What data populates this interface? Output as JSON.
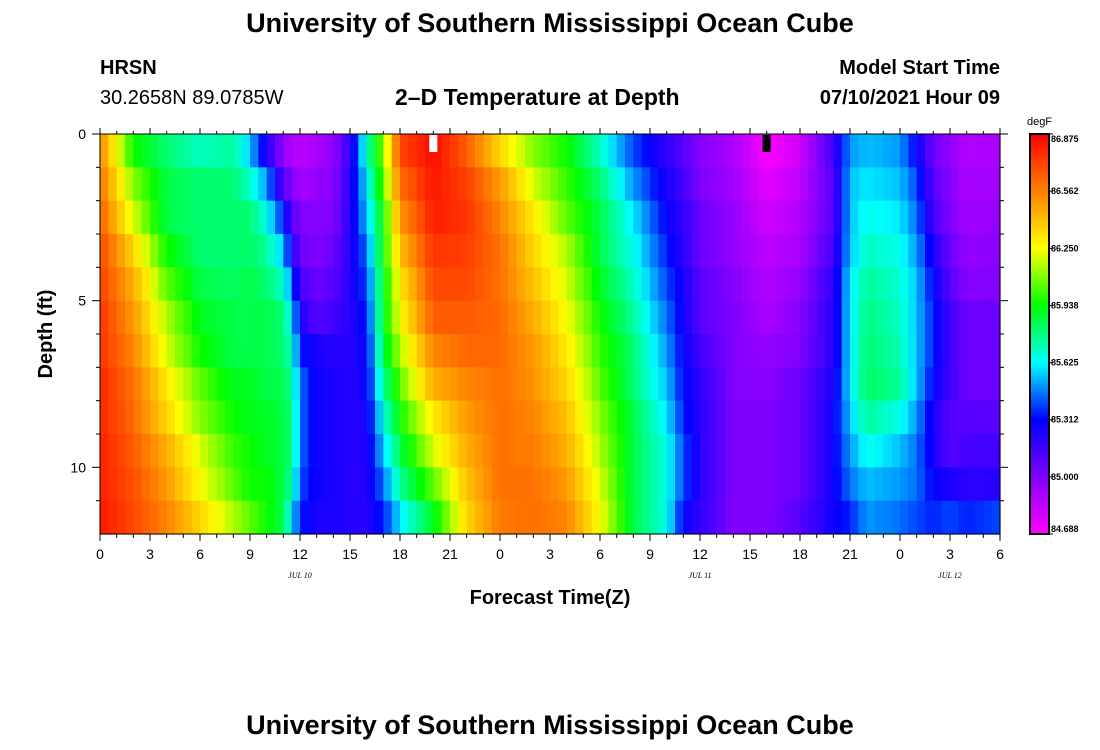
{
  "header": {
    "top_title": "University of Southern Mississippi Ocean Cube",
    "bottom_title": "University of Southern Mississippi Ocean Cube",
    "station_code": "HRSN",
    "station_coords": "30.2658N  89.0785W",
    "chart_title": "2–D Temperature at Depth",
    "model_start_label": "Model Start Time",
    "model_start_value": "07/10/2021 Hour 09"
  },
  "chart_data": {
    "type": "heatmap",
    "title": "2–D Temperature at Depth",
    "xlabel": "Forecast Time(Z)",
    "ylabel": "Depth (ft)",
    "x_hours_range": [
      0,
      54
    ],
    "xlim": [
      0,
      54
    ],
    "ylim": [
      0,
      12
    ],
    "x_tick_labels": [
      "0",
      "3",
      "6",
      "9",
      "12",
      "15",
      "18",
      "21",
      "0",
      "3",
      "6",
      "9",
      "12",
      "15",
      "18",
      "21",
      "0",
      "3",
      "6"
    ],
    "y_ticks": [
      0,
      5,
      10
    ],
    "y_tick_labels": [
      "0",
      "5",
      "10"
    ],
    "date_labels": [
      {
        "text": "JUL 10",
        "hour": 12
      },
      {
        "text": "JUL 11",
        "hour": 36
      },
      {
        "text": "JUL 12",
        "hour": 51
      }
    ],
    "markers": [
      {
        "name": "model-start-marker",
        "hour": 20,
        "color": "#ffffff"
      },
      {
        "name": "current-time-marker",
        "hour": 40,
        "color": "#000000"
      }
    ],
    "colorbar": {
      "unit": "degF",
      "labels": [
        "86.875",
        "86.562",
        "86.250",
        "85.938",
        "85.625",
        "85.312",
        "85.000",
        "84.688"
      ],
      "min": 84.688,
      "max": 86.875,
      "colors": [
        "#ff00ff",
        "#8000ff",
        "#0000ff",
        "#00ffff",
        "#00ff00",
        "#ffff00",
        "#ff8000",
        "#ff0000"
      ]
    },
    "depth_rows_ft": [
      0,
      1,
      2,
      3,
      4,
      5,
      6,
      7,
      8,
      9,
      10,
      11
    ],
    "column_profiles": [
      {
        "hour": 0,
        "values": [
          86.55,
          86.6,
          86.65,
          86.7,
          86.72,
          86.75,
          86.75,
          86.78,
          86.78,
          86.8,
          86.8,
          86.82
        ]
      },
      {
        "hour": 2,
        "values": [
          85.95,
          86.1,
          86.2,
          86.35,
          86.45,
          86.5,
          86.55,
          86.6,
          86.62,
          86.65,
          86.68,
          86.7
        ]
      },
      {
        "hour": 4,
        "values": [
          85.8,
          85.85,
          85.85,
          85.95,
          86.05,
          86.15,
          86.2,
          86.3,
          86.35,
          86.45,
          86.5,
          86.55
        ]
      },
      {
        "hour": 6,
        "values": [
          85.7,
          85.8,
          85.8,
          85.8,
          85.85,
          85.9,
          85.95,
          86.05,
          86.1,
          86.2,
          86.25,
          86.35
        ]
      },
      {
        "hour": 8,
        "values": [
          85.75,
          85.8,
          85.8,
          85.8,
          85.82,
          85.85,
          85.85,
          85.9,
          85.95,
          86.0,
          86.05,
          86.15
        ]
      },
      {
        "hour": 9,
        "values": [
          85.55,
          85.7,
          85.8,
          85.82,
          85.85,
          85.85,
          85.85,
          85.9,
          85.9,
          85.95,
          85.95,
          86.05
        ]
      },
      {
        "hour": 10,
        "values": [
          85.25,
          85.5,
          85.65,
          85.75,
          85.8,
          85.85,
          85.85,
          85.85,
          85.9,
          85.9,
          85.95,
          85.95
        ]
      },
      {
        "hour": 11,
        "values": [
          84.95,
          85.1,
          85.35,
          85.55,
          85.7,
          85.8,
          85.8,
          85.85,
          85.85,
          85.85,
          85.85,
          85.85
        ]
      },
      {
        "hour": 11.5,
        "values": [
          84.9,
          85.0,
          85.1,
          85.25,
          85.45,
          85.6,
          85.7,
          85.75,
          85.8,
          85.8,
          85.75,
          85.6
        ]
      },
      {
        "hour": 12,
        "values": [
          84.85,
          84.9,
          85.0,
          85.05,
          85.15,
          85.25,
          85.35,
          85.45,
          85.45,
          85.45,
          85.4,
          85.35
        ]
      },
      {
        "hour": 13,
        "values": [
          84.9,
          84.95,
          84.98,
          85.0,
          85.05,
          85.1,
          85.25,
          85.28,
          85.28,
          85.28,
          85.28,
          85.25
        ]
      },
      {
        "hour": 14,
        "values": [
          84.95,
          84.98,
          85.0,
          85.05,
          85.1,
          85.15,
          85.22,
          85.25,
          85.25,
          85.25,
          85.25,
          85.25
        ]
      },
      {
        "hour": 15,
        "values": [
          85.2,
          85.22,
          85.22,
          85.22,
          85.22,
          85.22,
          85.22,
          85.22,
          85.22,
          85.22,
          85.22,
          85.22
        ]
      },
      {
        "hour": 16,
        "values": [
          85.7,
          85.6,
          85.55,
          85.45,
          85.4,
          85.35,
          85.3,
          85.28,
          85.25,
          85.25,
          85.22,
          85.22
        ]
      },
      {
        "hour": 17,
        "values": [
          86.1,
          86.05,
          85.95,
          85.95,
          85.9,
          85.9,
          85.85,
          85.75,
          85.65,
          85.55,
          85.45,
          85.35
        ]
      },
      {
        "hour": 18,
        "values": [
          86.7,
          86.6,
          86.5,
          86.4,
          86.3,
          86.25,
          86.15,
          86.05,
          85.95,
          85.85,
          85.75,
          85.6
        ]
      },
      {
        "hour": 20,
        "values": [
          86.85,
          86.82,
          86.8,
          86.75,
          86.7,
          86.65,
          86.55,
          86.45,
          86.3,
          86.2,
          86.05,
          85.9
        ]
      },
      {
        "hour": 22,
        "values": [
          86.65,
          86.72,
          86.75,
          86.72,
          86.7,
          86.65,
          86.62,
          86.55,
          86.5,
          86.45,
          86.4,
          86.35
        ]
      },
      {
        "hour": 24,
        "values": [
          86.35,
          86.5,
          86.55,
          86.6,
          86.6,
          86.62,
          86.62,
          86.6,
          86.6,
          86.6,
          86.6,
          86.58
        ]
      },
      {
        "hour": 26,
        "values": [
          86.1,
          86.2,
          86.3,
          86.35,
          86.4,
          86.45,
          86.5,
          86.52,
          86.55,
          86.57,
          86.6,
          86.6
        ]
      },
      {
        "hour": 28,
        "values": [
          85.95,
          86.0,
          86.05,
          86.15,
          86.2,
          86.25,
          86.3,
          86.35,
          86.4,
          86.45,
          86.5,
          86.55
        ]
      },
      {
        "hour": 30,
        "values": [
          85.7,
          85.8,
          85.85,
          85.85,
          85.9,
          85.95,
          86.0,
          86.05,
          86.1,
          86.15,
          86.2,
          86.25
        ]
      },
      {
        "hour": 32,
        "values": [
          85.4,
          85.5,
          85.6,
          85.65,
          85.7,
          85.75,
          85.8,
          85.8,
          85.85,
          85.85,
          85.85,
          85.85
        ]
      },
      {
        "hour": 34,
        "values": [
          85.2,
          85.25,
          85.3,
          85.35,
          85.4,
          85.45,
          85.5,
          85.55,
          85.6,
          85.65,
          85.65,
          85.65
        ]
      },
      {
        "hour": 35,
        "values": [
          85.1,
          85.15,
          85.2,
          85.22,
          85.25,
          85.28,
          85.3,
          85.32,
          85.35,
          85.4,
          85.4,
          85.3
        ]
      },
      {
        "hour": 36,
        "values": [
          84.98,
          85.0,
          85.05,
          85.05,
          85.1,
          85.1,
          85.15,
          85.2,
          85.22,
          85.22,
          85.22,
          85.2
        ]
      },
      {
        "hour": 38,
        "values": [
          84.9,
          84.92,
          84.95,
          84.95,
          84.98,
          85.0,
          85.0,
          85.0,
          85.0,
          85.0,
          85.0,
          85.0
        ]
      },
      {
        "hour": 40,
        "values": [
          84.7,
          84.75,
          84.8,
          84.85,
          84.88,
          84.9,
          84.95,
          84.98,
          85.0,
          85.0,
          85.0,
          85.0
        ]
      },
      {
        "hour": 42,
        "values": [
          84.8,
          84.85,
          84.88,
          84.9,
          84.95,
          84.98,
          85.0,
          85.05,
          85.05,
          85.05,
          85.05,
          85.1
        ]
      },
      {
        "hour": 44,
        "values": [
          85.15,
          85.1,
          85.1,
          85.15,
          85.2,
          85.22,
          85.22,
          85.25,
          85.28,
          85.28,
          85.28,
          85.28
        ]
      },
      {
        "hour": 45,
        "values": [
          85.5,
          85.55,
          85.55,
          85.55,
          85.6,
          85.6,
          85.6,
          85.6,
          85.55,
          85.5,
          85.45,
          85.35
        ]
      },
      {
        "hour": 46,
        "values": [
          85.55,
          85.6,
          85.65,
          85.7,
          85.75,
          85.78,
          85.8,
          85.82,
          85.75,
          85.65,
          85.55,
          85.5
        ]
      },
      {
        "hour": 48,
        "values": [
          85.5,
          85.55,
          85.6,
          85.65,
          85.68,
          85.7,
          85.72,
          85.75,
          85.65,
          85.55,
          85.5,
          85.45
        ]
      },
      {
        "hour": 49,
        "values": [
          85.3,
          85.4,
          85.45,
          85.5,
          85.55,
          85.55,
          85.55,
          85.55,
          85.5,
          85.45,
          85.45,
          85.4
        ]
      },
      {
        "hour": 50,
        "values": [
          85.05,
          85.1,
          85.15,
          85.25,
          85.3,
          85.35,
          85.35,
          85.3,
          85.25,
          85.25,
          85.3,
          85.35
        ]
      },
      {
        "hour": 51,
        "values": [
          84.95,
          84.98,
          85.0,
          85.05,
          85.1,
          85.15,
          85.15,
          85.15,
          85.1,
          85.1,
          85.25,
          85.4
        ]
      },
      {
        "hour": 52,
        "values": [
          84.88,
          84.9,
          84.92,
          84.95,
          84.98,
          85.05,
          85.05,
          85.05,
          85.1,
          85.15,
          85.2,
          85.35
        ]
      },
      {
        "hour": 54,
        "values": [
          84.9,
          84.92,
          84.95,
          84.98,
          85.0,
          85.05,
          85.05,
          85.05,
          85.1,
          85.15,
          85.22,
          85.4
        ]
      }
    ]
  }
}
